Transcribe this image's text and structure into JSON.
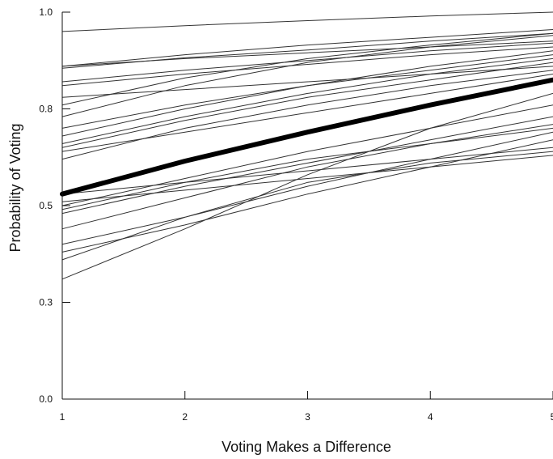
{
  "chart_data": {
    "type": "line",
    "title": "",
    "xlabel": "Voting Makes a Difference",
    "ylabel": "Probability of Voting",
    "xlim": [
      1,
      5
    ],
    "ylim": [
      0.0,
      1.0
    ],
    "x_ticks": [
      1,
      2,
      3,
      4,
      5
    ],
    "x_tick_labels": [
      "1",
      "2",
      "3",
      "4",
      "5"
    ],
    "y_ticks": [
      0.0,
      0.25,
      0.5,
      0.75,
      1.0
    ],
    "y_tick_labels": [
      "0.0",
      "0.3",
      "0.5",
      "0.8",
      "1.0"
    ],
    "grid": false,
    "legend": "none",
    "colors": {
      "lines": "#333333",
      "highlight": "#000000",
      "axis": "#111111"
    },
    "x": [
      1,
      2,
      3,
      4,
      5
    ],
    "series": [
      {
        "values": [
          0.53,
          0.615,
          0.69,
          0.76,
          0.825
        ],
        "highlight": true
      },
      {
        "values": [
          0.95,
          0.965,
          0.978,
          0.99,
          1.0
        ]
      },
      {
        "values": [
          0.855,
          0.882,
          0.902,
          0.925,
          0.945
        ]
      },
      {
        "values": [
          0.86,
          0.89,
          0.915,
          0.935,
          0.955
        ]
      },
      {
        "values": [
          0.73,
          0.81,
          0.87,
          0.91,
          0.94
        ]
      },
      {
        "values": [
          0.76,
          0.83,
          0.88,
          0.915,
          0.945
        ]
      },
      {
        "values": [
          0.82,
          0.85,
          0.875,
          0.9,
          0.92
        ]
      },
      {
        "values": [
          0.86,
          0.88,
          0.895,
          0.91,
          0.925
        ]
      },
      {
        "values": [
          0.81,
          0.84,
          0.865,
          0.89,
          0.91
        ]
      },
      {
        "values": [
          0.7,
          0.76,
          0.81,
          0.85,
          0.89
        ]
      },
      {
        "values": [
          0.66,
          0.73,
          0.79,
          0.84,
          0.88
        ]
      },
      {
        "values": [
          0.68,
          0.75,
          0.81,
          0.86,
          0.9
        ]
      },
      {
        "values": [
          0.65,
          0.72,
          0.78,
          0.825,
          0.87
        ]
      },
      {
        "values": [
          0.64,
          0.69,
          0.74,
          0.79,
          0.84
        ]
      },
      {
        "values": [
          0.62,
          0.7,
          0.76,
          0.81,
          0.85
        ]
      },
      {
        "values": [
          0.78,
          0.8,
          0.82,
          0.84,
          0.86
        ]
      },
      {
        "values": [
          0.5,
          0.57,
          0.64,
          0.7,
          0.76
        ]
      },
      {
        "values": [
          0.49,
          0.56,
          0.62,
          0.66,
          0.7
        ]
      },
      {
        "values": [
          0.51,
          0.54,
          0.57,
          0.6,
          0.63
        ]
      },
      {
        "values": [
          0.53,
          0.56,
          0.59,
          0.62,
          0.65
        ]
      },
      {
        "values": [
          0.4,
          0.47,
          0.55,
          0.62,
          0.69
        ]
      },
      {
        "values": [
          0.44,
          0.52,
          0.6,
          0.66,
          0.71
        ]
      },
      {
        "values": [
          0.38,
          0.45,
          0.53,
          0.6,
          0.67
        ]
      },
      {
        "values": [
          0.36,
          0.47,
          0.56,
          0.61,
          0.64
        ]
      },
      {
        "values": [
          0.31,
          0.44,
          0.58,
          0.7,
          0.79
        ]
      },
      {
        "values": [
          0.48,
          0.55,
          0.61,
          0.67,
          0.73
        ]
      }
    ]
  }
}
